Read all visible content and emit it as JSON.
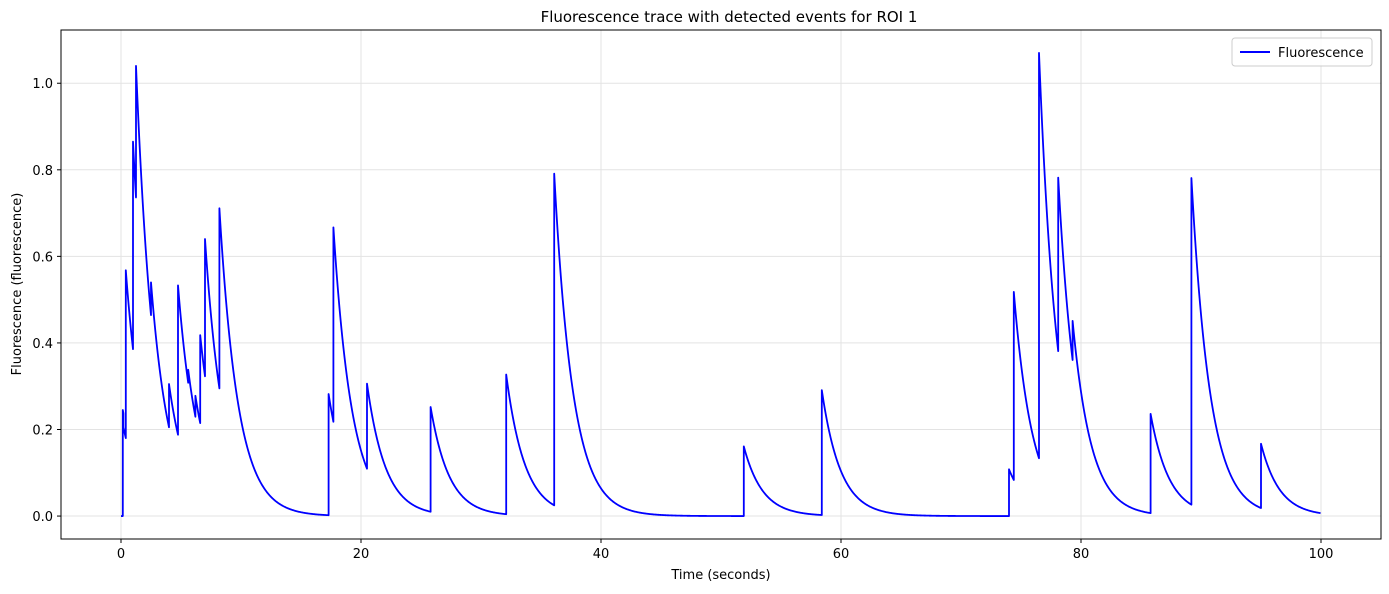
{
  "chart_data": {
    "type": "line",
    "title": "Fluorescence trace with detected events for ROI 1",
    "xlabel": "Time (seconds)",
    "ylabel": "Fluorescence (fluorescence)",
    "xlim": [
      -5,
      105
    ],
    "ylim": [
      -0.053,
      1.123
    ],
    "xticks": [
      0,
      20,
      40,
      60,
      80,
      100
    ],
    "xtick_labels": [
      "0",
      "20",
      "40",
      "60",
      "80",
      "100"
    ],
    "yticks": [
      0.0,
      0.2,
      0.4,
      0.6,
      0.8,
      1.0
    ],
    "ytick_labels": [
      "0.0",
      "0.2",
      "0.4",
      "0.6",
      "0.8",
      "1.0"
    ],
    "grid": true,
    "legend_position": "top-right",
    "series": [
      {
        "name": "Fluorescence",
        "color": "#0000ff",
        "baseline": 0.0,
        "x_end": 100,
        "events": [
          {
            "t": 0.15,
            "peak": 0.245
          },
          {
            "t": 0.2,
            "peak": 0.205
          },
          {
            "t": 0.4,
            "peak": 0.568
          },
          {
            "t": 1.0,
            "peak": 0.865
          },
          {
            "t": 1.25,
            "peak": 1.04
          },
          {
            "t": 2.5,
            "peak": 0.54
          },
          {
            "t": 4.0,
            "peak": 0.305
          },
          {
            "t": 4.75,
            "peak": 0.533
          },
          {
            "t": 5.6,
            "peak": 0.338
          },
          {
            "t": 6.2,
            "peak": 0.278
          },
          {
            "t": 6.6,
            "peak": 0.418
          },
          {
            "t": 7.0,
            "peak": 0.64
          },
          {
            "t": 8.2,
            "peak": 0.711
          },
          {
            "t": 17.3,
            "peak": 0.282
          },
          {
            "t": 17.7,
            "peak": 0.667
          },
          {
            "t": 20.5,
            "peak": 0.306
          },
          {
            "t": 25.8,
            "peak": 0.252
          },
          {
            "t": 32.1,
            "peak": 0.327
          },
          {
            "t": 36.1,
            "peak": 0.791
          },
          {
            "t": 51.9,
            "peak": 0.161
          },
          {
            "t": 58.4,
            "peak": 0.291
          },
          {
            "t": 74.0,
            "peak": 0.108
          },
          {
            "t": 74.4,
            "peak": 0.518
          },
          {
            "t": 76.5,
            "peak": 1.07
          },
          {
            "t": 78.1,
            "peak": 0.782
          },
          {
            "t": 79.3,
            "peak": 0.451
          },
          {
            "t": 85.8,
            "peak": 0.236
          },
          {
            "t": 89.2,
            "peak": 0.781
          },
          {
            "t": 95.0,
            "peak": 0.167
          }
        ]
      }
    ]
  }
}
